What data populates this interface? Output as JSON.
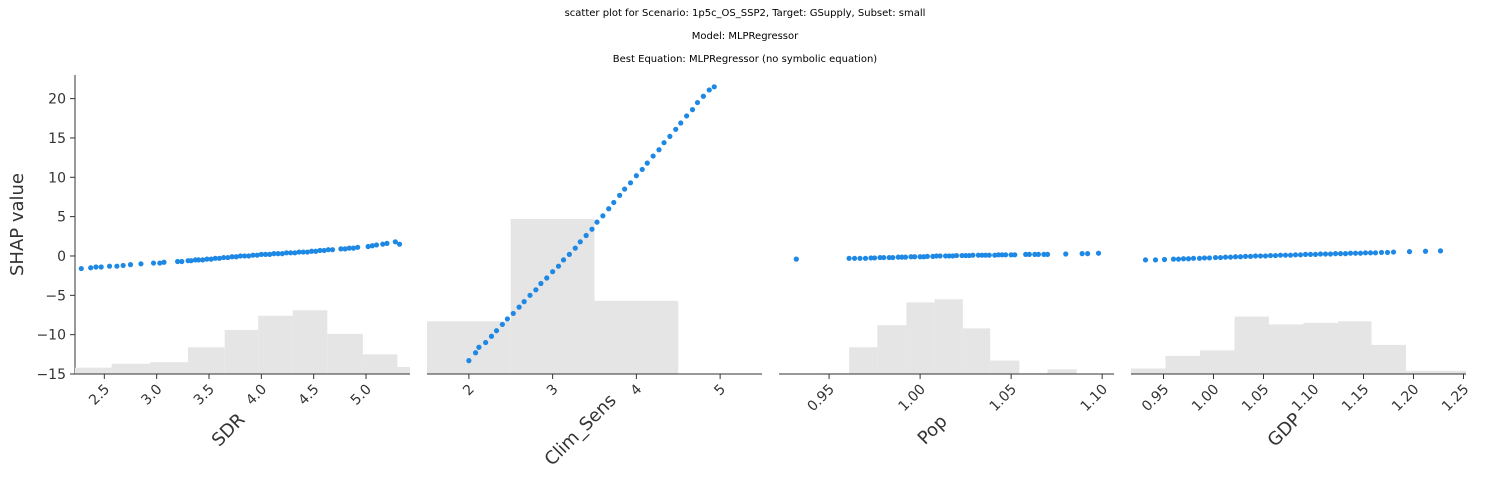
{
  "title_lines": [
    "scatter plot for Scenario: 1p5c_OS_SSP2, Target: GSupply, Subset: small",
    "Model: MLPRegressor",
    "Best Equation: MLPRegressor (no symbolic equation)"
  ],
  "colors": {
    "points": "#1e88e5",
    "hist": "#e5e5e5",
    "axis": "#333333"
  },
  "chart_data": {
    "type": "scatter",
    "ylabel": "SHAP value",
    "ylim": [
      -15,
      23
    ],
    "yticks": [
      -15,
      -10,
      -5,
      0,
      5,
      10,
      15,
      20
    ],
    "ytick_labels": [
      "−15",
      "−10",
      "−5",
      "0",
      "5",
      "10",
      "15",
      "20"
    ],
    "panels": [
      {
        "xlabel": "SDR",
        "xlim": [
          2.22,
          5.42
        ],
        "xticks": [
          2.5,
          3.0,
          3.5,
          4.0,
          4.5,
          5.0
        ],
        "xtick_labels": [
          "2.5",
          "3.0",
          "3.5",
          "4.0",
          "4.5",
          "5.0"
        ],
        "hist_edges": [
          2.22,
          2.57,
          2.94,
          3.3,
          3.65,
          3.97,
          4.3,
          4.63,
          4.97,
          5.3,
          5.42
        ],
        "hist_tops": [
          -14.2,
          -13.7,
          -13.5,
          -11.6,
          -9.4,
          -7.6,
          -6.9,
          -9.9,
          -12.5,
          -14.1
        ],
        "points": {
          "x": [
            2.28,
            2.37,
            2.42,
            2.47,
            2.55,
            2.62,
            2.68,
            2.75,
            2.85,
            2.97,
            3.03,
            3.07,
            3.2,
            3.24,
            3.3,
            3.33,
            3.37,
            3.4,
            3.44,
            3.48,
            3.52,
            3.56,
            3.6,
            3.64,
            3.68,
            3.72,
            3.76,
            3.8,
            3.84,
            3.88,
            3.92,
            3.96,
            4.0,
            4.04,
            4.08,
            4.12,
            4.16,
            4.2,
            4.24,
            4.28,
            4.32,
            4.36,
            4.4,
            4.44,
            4.48,
            4.52,
            4.56,
            4.6,
            4.64,
            4.68,
            4.76,
            4.8,
            4.84,
            4.88,
            4.92,
            5.02,
            5.06,
            5.1,
            5.16,
            5.2,
            5.28,
            5.32
          ],
          "y": [
            -1.6,
            -1.5,
            -1.4,
            -1.4,
            -1.3,
            -1.3,
            -1.2,
            -1.1,
            -1.0,
            -0.9,
            -0.9,
            -0.8,
            -0.7,
            -0.7,
            -0.6,
            -0.6,
            -0.5,
            -0.5,
            -0.5,
            -0.4,
            -0.4,
            -0.3,
            -0.3,
            -0.2,
            -0.2,
            -0.1,
            -0.1,
            0.0,
            0.0,
            0.0,
            0.1,
            0.1,
            0.2,
            0.2,
            0.2,
            0.3,
            0.3,
            0.3,
            0.4,
            0.4,
            0.4,
            0.5,
            0.5,
            0.5,
            0.6,
            0.6,
            0.7,
            0.7,
            0.8,
            0.8,
            0.9,
            0.9,
            1.0,
            1.0,
            1.1,
            1.2,
            1.3,
            1.4,
            1.5,
            1.6,
            1.8,
            1.5
          ]
        }
      },
      {
        "xlabel": "Clim_Sens",
        "xlim": [
          1.5,
          5.5
        ],
        "xticks": [
          2,
          3,
          4,
          5
        ],
        "xtick_labels": [
          "2",
          "3",
          "4",
          "5"
        ],
        "hist_edges": [
          1.5,
          2.5,
          3.5,
          4.5,
          5.5
        ],
        "hist_tops": [
          -8.3,
          4.7,
          -5.7,
          -15
        ],
        "points": {
          "x": [
            2.0,
            2.08,
            2.12,
            2.2,
            2.27,
            2.33,
            2.4,
            2.46,
            2.53,
            2.6,
            2.66,
            2.73,
            2.8,
            2.86,
            2.93,
            3.0,
            3.07,
            3.13,
            3.2,
            3.27,
            3.33,
            3.4,
            3.47,
            3.53,
            3.6,
            3.67,
            3.73,
            3.8,
            3.86,
            3.93,
            4.0,
            4.07,
            4.13,
            4.2,
            4.27,
            4.33,
            4.4,
            4.47,
            4.53,
            4.6,
            4.67,
            4.73,
            4.8,
            4.87,
            4.93
          ],
          "y": [
            -13.3,
            -12.3,
            -11.6,
            -11.0,
            -10.2,
            -9.5,
            -8.7,
            -8.0,
            -7.3,
            -6.5,
            -5.8,
            -5.0,
            -4.3,
            -3.5,
            -2.8,
            -2.0,
            -1.3,
            -0.5,
            0.2,
            1.0,
            1.8,
            2.6,
            3.4,
            4.3,
            5.1,
            6.0,
            6.8,
            7.7,
            8.5,
            9.3,
            10.2,
            11.0,
            11.8,
            12.7,
            13.5,
            14.4,
            15.2,
            16.1,
            16.9,
            17.8,
            18.6,
            19.5,
            20.3,
            21.1,
            21.5
          ]
        }
      },
      {
        "xlabel": "Pop",
        "xlim": [
          0.9225,
          1.1065
        ],
        "xticks": [
          0.95,
          1.0,
          1.05,
          1.1
        ],
        "xtick_labels": [
          "0.95",
          "1.00",
          "1.05",
          "1.10"
        ],
        "hist_edges": [
          0.9225,
          0.946,
          0.961,
          0.9765,
          0.9925,
          1.008,
          1.0235,
          1.0385,
          1.0545,
          1.07,
          1.086,
          1.1065
        ],
        "hist_tops": [
          -14.95,
          -14.9,
          -11.6,
          -8.8,
          -5.9,
          -5.5,
          -9.2,
          -13.3,
          -14.9,
          -14.4,
          -15
        ],
        "points": {
          "x": [
            0.932,
            0.961,
            0.964,
            0.967,
            0.97,
            0.973,
            0.975,
            0.978,
            0.98,
            0.983,
            0.985,
            0.988,
            0.99,
            0.992,
            0.995,
            0.997,
            1.0,
            1.002,
            1.004,
            1.007,
            1.009,
            1.011,
            1.014,
            1.016,
            1.018,
            1.02,
            1.023,
            1.025,
            1.027,
            1.029,
            1.032,
            1.034,
            1.036,
            1.038,
            1.041,
            1.043,
            1.045,
            1.047,
            1.05,
            1.052,
            1.058,
            1.06,
            1.063,
            1.065,
            1.068,
            1.07,
            1.08,
            1.089,
            1.092,
            1.098
          ],
          "y": [
            -0.4,
            -0.3,
            -0.3,
            -0.3,
            -0.3,
            -0.25,
            -0.25,
            -0.2,
            -0.2,
            -0.2,
            -0.2,
            -0.15,
            -0.15,
            -0.15,
            -0.1,
            -0.1,
            -0.1,
            -0.1,
            -0.05,
            -0.05,
            0.0,
            0.0,
            0.0,
            0.0,
            0.0,
            0.05,
            0.05,
            0.05,
            0.05,
            0.1,
            0.1,
            0.1,
            0.1,
            0.1,
            0.1,
            0.15,
            0.15,
            0.15,
            0.15,
            0.15,
            0.2,
            0.2,
            0.2,
            0.2,
            0.2,
            0.2,
            0.25,
            0.3,
            0.3,
            0.35
          ]
        }
      },
      {
        "xlabel": "GDP",
        "xlim": [
          0.9175,
          1.2525
        ],
        "xticks": [
          0.95,
          1.0,
          1.05,
          1.1,
          1.15,
          1.2,
          1.25
        ],
        "xtick_labels": [
          "0.95",
          "1.00",
          "1.05",
          "1.10",
          "1.15",
          "1.20",
          "1.25"
        ],
        "hist_edges": [
          0.9175,
          0.952,
          0.9865,
          1.021,
          1.0555,
          1.09,
          1.1245,
          1.158,
          1.1925,
          1.2525
        ],
        "hist_tops": [
          -14.3,
          -12.7,
          -12.0,
          -7.7,
          -8.7,
          -8.5,
          -8.3,
          -11.3,
          -14.6
        ],
        "points": {
          "x": [
            0.932,
            0.942,
            0.951,
            0.96,
            0.965,
            0.97,
            0.975,
            0.98,
            0.986,
            0.991,
            0.996,
            1.002,
            1.007,
            1.012,
            1.017,
            1.022,
            1.027,
            1.032,
            1.037,
            1.042,
            1.047,
            1.052,
            1.057,
            1.062,
            1.067,
            1.072,
            1.077,
            1.082,
            1.087,
            1.092,
            1.097,
            1.102,
            1.107,
            1.112,
            1.117,
            1.122,
            1.127,
            1.132,
            1.137,
            1.142,
            1.147,
            1.152,
            1.157,
            1.162,
            1.168,
            1.174,
            1.18,
            1.196,
            1.212,
            1.227
          ],
          "y": [
            -0.5,
            -0.5,
            -0.45,
            -0.4,
            -0.4,
            -0.35,
            -0.35,
            -0.3,
            -0.3,
            -0.25,
            -0.25,
            -0.2,
            -0.2,
            -0.15,
            -0.15,
            -0.1,
            -0.1,
            -0.05,
            -0.05,
            0.0,
            0.0,
            0.0,
            0.05,
            0.05,
            0.1,
            0.1,
            0.1,
            0.15,
            0.15,
            0.2,
            0.2,
            0.2,
            0.25,
            0.25,
            0.25,
            0.3,
            0.3,
            0.3,
            0.35,
            0.35,
            0.35,
            0.4,
            0.4,
            0.4,
            0.45,
            0.45,
            0.5,
            0.55,
            0.6,
            0.65
          ]
        }
      }
    ]
  }
}
